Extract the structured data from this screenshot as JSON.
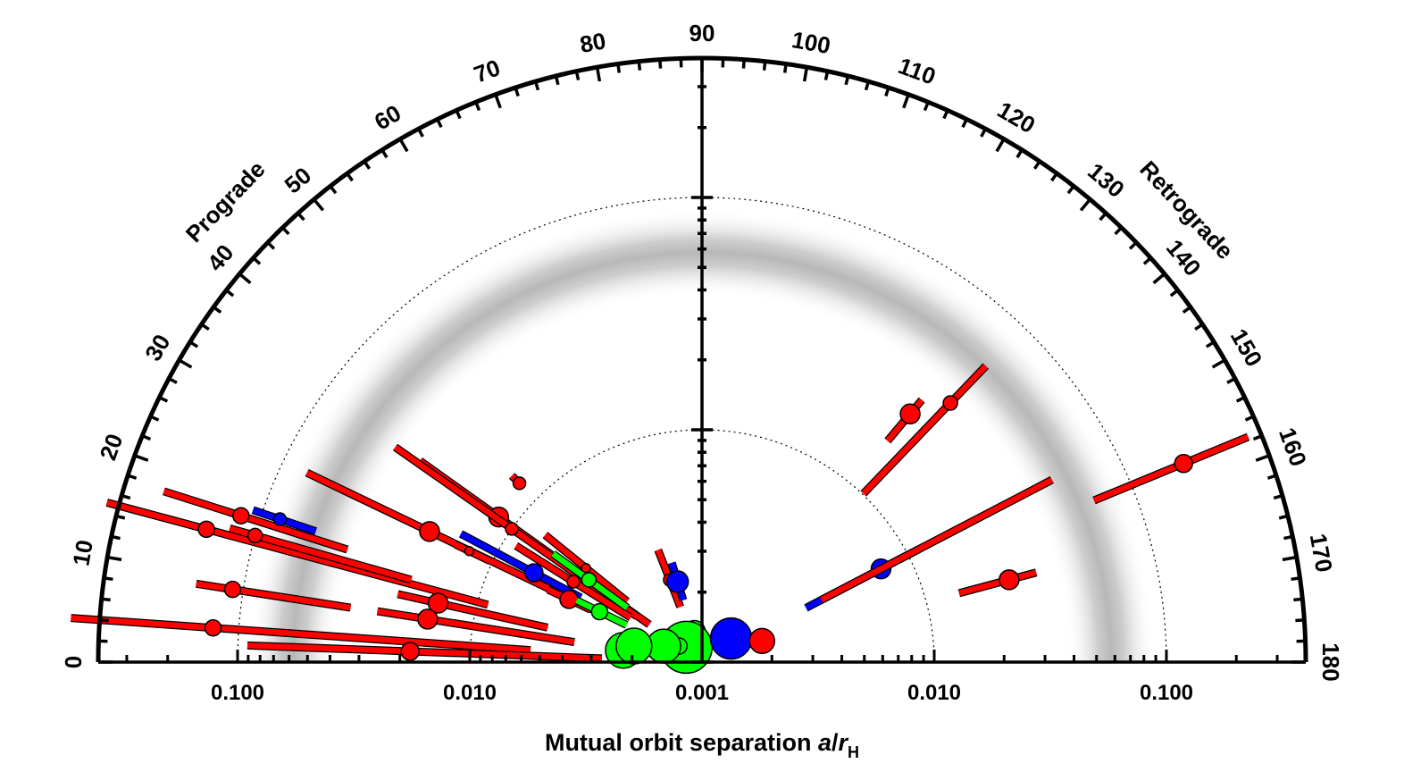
{
  "chart_data": {
    "type": "scatter",
    "projection": "polar half-disk",
    "xlabel_main": "Mutual orbit separation ",
    "xlabel_italic": "a",
    "xlabel_slash": "/",
    "xlabel_r": "r",
    "xlabel_sub": "H",
    "side_labels": {
      "prograde": "Prograde",
      "retrograde": "Retrograde"
    },
    "angle_axis": {
      "range": [
        0,
        180
      ],
      "major_step": 10,
      "minor_step": 2,
      "labels": [
        "0",
        "10",
        "20",
        "30",
        "40",
        "50",
        "60",
        "70",
        "80",
        "90",
        "100",
        "110",
        "120",
        "130",
        "140",
        "150",
        "160",
        "170",
        "180"
      ]
    },
    "radial_axis": {
      "scale": "log",
      "range": [
        0.001,
        0.5
      ],
      "tick_values": [
        0.1,
        0.01,
        0.001,
        0.01,
        0.1
      ],
      "tick_labels": [
        "0.100",
        "0.010",
        "0.001",
        "0.010",
        "0.100"
      ],
      "dotted_circles": [
        0.01,
        0.1
      ]
    },
    "shaded_band": {
      "center": 0.05,
      "description": "gray band"
    },
    "colors": {
      "red": "#ff0000",
      "blue": "#0000ff",
      "green": "#00ff00",
      "band": "#9a9a9a"
    },
    "points": [
      {
        "sep": 0.162,
        "inc": 15.0,
        "size": 9,
        "color": "red",
        "sep_err": [
          0.009,
          0.45
        ]
      },
      {
        "sep": 0.121,
        "inc": 17.6,
        "size": 9,
        "color": "red",
        "sep_err": [
          0.04,
          0.27
        ]
      },
      {
        "sep": 0.083,
        "inc": 18.7,
        "size": 7,
        "color": "blue",
        "sep_err": [
          0.057,
          0.11
        ]
      },
      {
        "sep": 0.1,
        "inc": 15.8,
        "size": 8,
        "color": "red",
        "sep_err": [
          0.02,
          0.13
        ]
      },
      {
        "sep": 0.111,
        "inc": 8.8,
        "size": 9,
        "color": "red",
        "sep_err": [
          0.034,
          0.16
        ]
      },
      {
        "sep": 0.129,
        "inc": 4.0,
        "size": 9,
        "color": "red",
        "sep_err": [
          0.0055,
          0.53
        ]
      },
      {
        "sep": 0.0181,
        "inc": 2.1,
        "size": 10,
        "color": "red",
        "sep_err": [
          0.0027,
          0.091
        ]
      },
      {
        "sep": 0.0146,
        "inc": 12.6,
        "size": 11,
        "color": "red",
        "sep_err": [
          0.0048,
          0.022
        ]
      },
      {
        "sep": 0.0157,
        "inc": 8.9,
        "size": 11,
        "color": "red",
        "sep_err": [
          0.0036,
          0.026
        ]
      },
      {
        "sep": 0.02,
        "inc": 25.6,
        "size": 11,
        "color": "red",
        "sep_err": [
          0.0029,
          0.077
        ]
      },
      {
        "sep": 0.0119,
        "inc": 35.5,
        "size": 11,
        "color": "red",
        "sep_err": [
          0.0019,
          0.031
        ]
      },
      {
        "sep": 0.0126,
        "inc": 44.4,
        "size": 7,
        "color": "red",
        "sep_err": [
          0.012,
          0.014
        ]
      },
      {
        "sep": 0.01,
        "inc": 35.0,
        "size": 7,
        "color": "red",
        "sep_err": [
          0.0022,
          0.041
        ]
      },
      {
        "sep": 0.0129,
        "inc": 25.5,
        "size": 5,
        "color": "red",
        "sep_err": [
          0.0103,
          0.015
        ]
      },
      {
        "sep": 0.0066,
        "inc": 28.0,
        "size": 10,
        "color": "blue",
        "sep_err": [
          0.0039,
          0.015
        ]
      },
      {
        "sep": 0.0043,
        "inc": 25.2,
        "size": 10,
        "color": "red",
        "sep_err": [
          0.0034,
          0.0054
        ]
      },
      {
        "sep": 0.0045,
        "inc": 32.0,
        "size": 7,
        "color": "red",
        "sep_err": [
          0.0023,
          0.0088
        ]
      },
      {
        "sep": 0.0044,
        "inc": 39.0,
        "size": 5,
        "color": "red",
        "sep_err": [
          0.0026,
          0.0074
        ]
      },
      {
        "sep": 0.004,
        "inc": 36.0,
        "size": 8,
        "color": "green",
        "sep_err": [
          0.0025,
          0.0062
        ]
      },
      {
        "sep": 0.0031,
        "inc": 26.2,
        "size": 9,
        "color": "green",
        "sep_err": [
          0.0023,
          0.004
        ]
      },
      {
        "sep": 0.0024,
        "inc": 68.6,
        "size": 7,
        "color": "red",
        "sep_err": [
          0.0018,
          0.0033
        ]
      },
      {
        "sep": 0.0023,
        "inc": 73.1,
        "size": 12,
        "color": "blue",
        "sep_err": [
          0.0019,
          0.0028
        ]
      },
      {
        "sep": 0.00137,
        "inc": 76.2,
        "size": 12,
        "color": "green",
        "sep_err": [
          0.00124,
          0.00152
        ]
      },
      {
        "sep": 0.00124,
        "inc": 43.0,
        "size": 29,
        "color": "green",
        "sep_err": null
      },
      {
        "sep": 0.00132,
        "inc": 35.0,
        "size": 9,
        "color": "green",
        "sep_err": [
          0.00125,
          0.00141
        ]
      },
      {
        "sep": 0.00151,
        "inc": 22.6,
        "size": 19,
        "color": "green",
        "sep_err": [
          0.0014,
          0.00164
        ]
      },
      {
        "sep": 0.0022,
        "inc": 8.5,
        "size": 20,
        "color": "green",
        "sep_err": null
      },
      {
        "sep": 0.002,
        "inc": 13.3,
        "size": 20,
        "color": "green",
        "sep_err": null
      },
      {
        "sep": 0.00145,
        "inc": 141.0,
        "size": 23,
        "color": "blue",
        "sep_err": null
      },
      {
        "sep": 0.00188,
        "inc": 160.6,
        "size": 14,
        "color": "red",
        "sep_err": null
      },
      {
        "sep": 0.0074,
        "inc": 152.5,
        "size": 11,
        "color": "blue",
        "sep_err": [
          0.0032,
          0.0113
        ]
      },
      {
        "sep": 0.0074,
        "inc": 152.5,
        "size": 0,
        "color": "red",
        "sep_err": [
          0.0038,
          0.05
        ]
      },
      {
        "sep": 0.0248,
        "inc": 130.0,
        "size": 11,
        "color": "red",
        "sep_err": [
          0.0175,
          0.0297
        ]
      },
      {
        "sep": 0.0351,
        "inc": 133.8,
        "size": 8,
        "color": "red",
        "sep_err": [
          0.0101,
          0.0583
        ]
      },
      {
        "sep": 0.0234,
        "inc": 165.0,
        "size": 11,
        "color": "red",
        "sep_err": [
          0.014,
          0.0309
        ]
      },
      {
        "sep": 0.175,
        "inc": 157.6,
        "size": 10,
        "color": "red",
        "sep_err": [
          0.067,
          0.35
        ]
      }
    ]
  }
}
